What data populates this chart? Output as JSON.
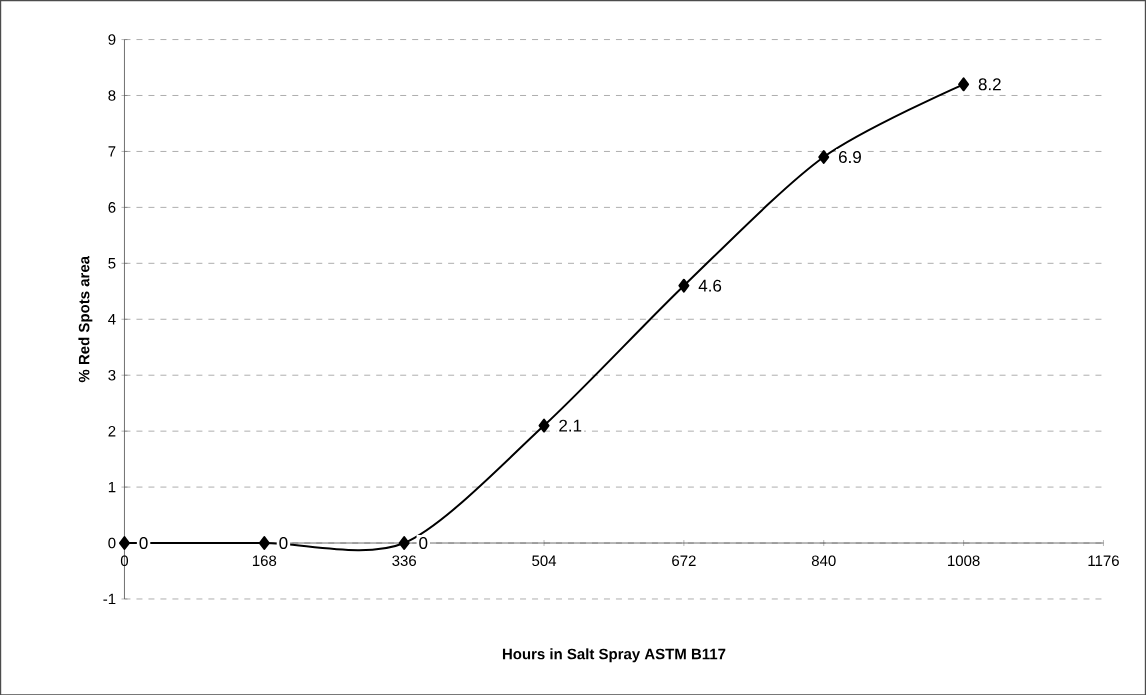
{
  "chart_data": {
    "type": "line",
    "xlabel": "Hours in Salt Spray ASTM B117",
    "ylabel": "% Red Spots area",
    "x": [
      0,
      168,
      336,
      504,
      672,
      840,
      1008
    ],
    "series": [
      {
        "color": "#000000",
        "values": [
          0,
          0,
          0,
          2.1,
          4.6,
          6.9,
          8.2
        ]
      }
    ],
    "xlim": [
      0,
      1176
    ],
    "xticks": [
      0,
      168,
      336,
      504,
      672,
      840,
      1008,
      1176
    ],
    "ylim": [
      -1,
      9
    ],
    "yticks": [
      -1,
      0,
      1,
      2,
      3,
      4,
      5,
      6,
      7,
      8,
      9
    ],
    "grid": "y",
    "marker": "diamond",
    "line_style": "solid",
    "data_labels": true
  }
}
